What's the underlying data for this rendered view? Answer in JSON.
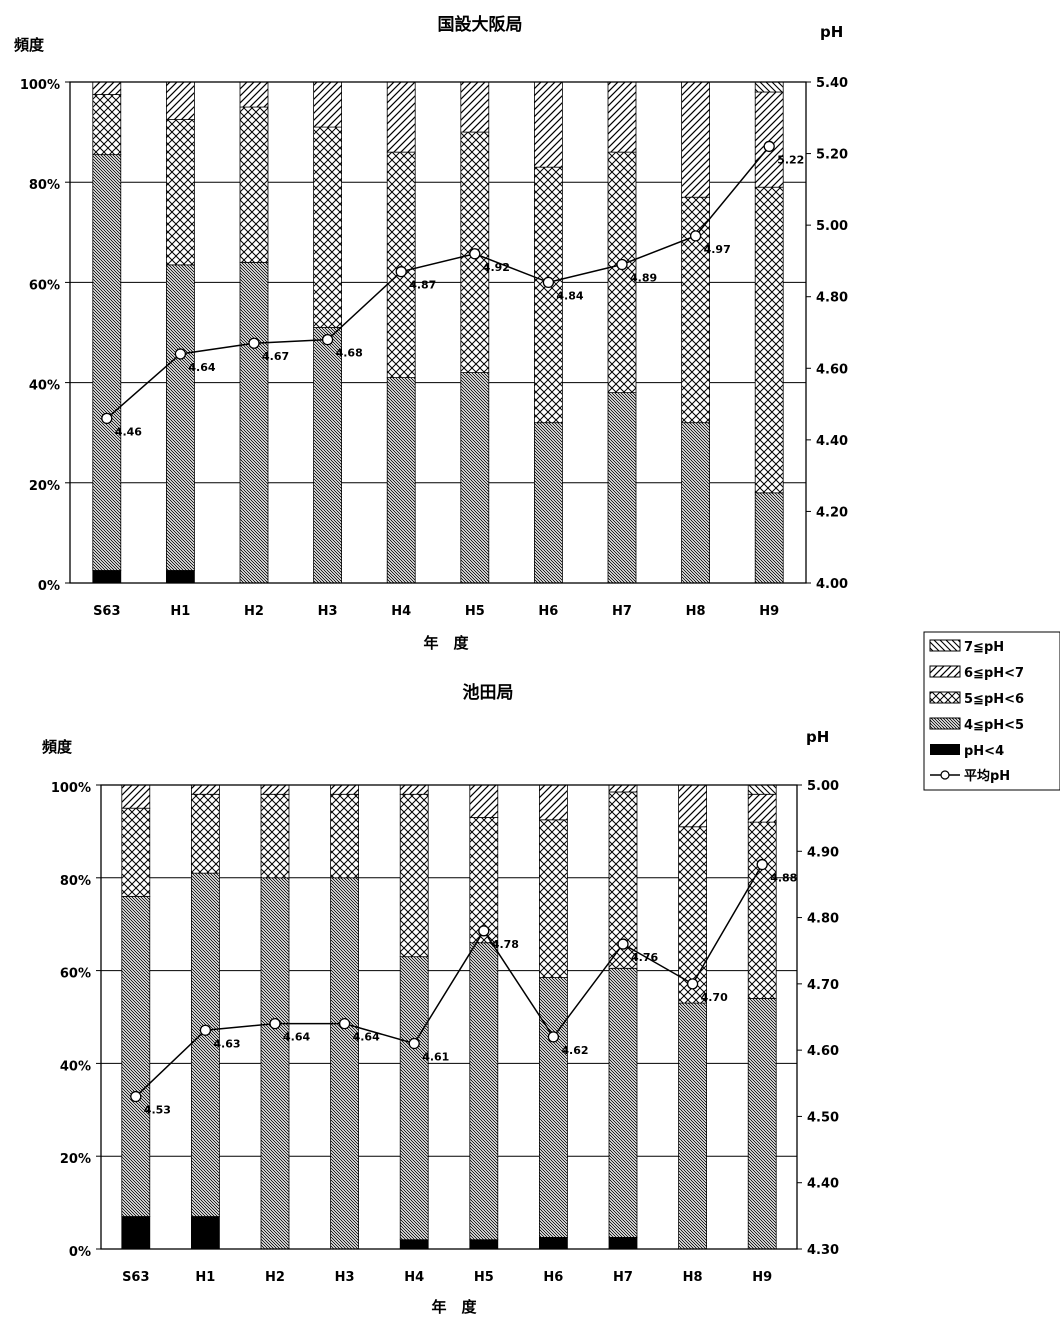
{
  "chart_data": [
    {
      "type": "bar",
      "title": "国設大阪局",
      "ylabel": "頻度",
      "y2label": "pH",
      "xlabel": "年　度",
      "categories": [
        "S63",
        "H1",
        "H2",
        "H3",
        "H4",
        "H5",
        "H6",
        "H7",
        "H8",
        "H9"
      ],
      "ylim": [
        0,
        100
      ],
      "y_ticks": [
        "0%",
        "20%",
        "40%",
        "60%",
        "80%",
        "100%"
      ],
      "y2lim": [
        4.0,
        5.4
      ],
      "y2_ticks": [
        "4.00",
        "4.20",
        "4.40",
        "4.60",
        "4.80",
        "5.00",
        "5.20",
        "5.40"
      ],
      "stacked": true,
      "series": [
        {
          "name": "pH<4",
          "values": [
            2.5,
            2.5,
            0,
            0,
            0,
            0,
            0,
            0,
            0,
            0
          ]
        },
        {
          "name": "4≦pH<5",
          "values": [
            83,
            61,
            64,
            51,
            41,
            42,
            32,
            38,
            32,
            18
          ]
        },
        {
          "name": "5≦pH<6",
          "values": [
            12,
            29,
            31,
            40,
            45,
            48,
            51,
            48,
            45,
            61
          ]
        },
        {
          "name": "6≦pH<7",
          "values": [
            2.5,
            7.5,
            5,
            9,
            14,
            10,
            17,
            14,
            23,
            19
          ]
        },
        {
          "name": "7≦pH",
          "values": [
            0,
            0,
            0,
            0,
            0,
            0,
            0,
            0,
            0,
            2
          ]
        }
      ],
      "line": {
        "name": "平均pH",
        "values": [
          4.46,
          4.64,
          4.67,
          4.68,
          4.87,
          4.92,
          4.84,
          4.89,
          4.97,
          5.22
        ],
        "labels": [
          "4.46",
          "4.64",
          "4.67",
          "4.68",
          "4.87",
          "4.92",
          "4.84",
          "4.89",
          "4.97",
          "5.22"
        ]
      }
    },
    {
      "type": "bar",
      "title": "池田局",
      "ylabel": "頻度",
      "y2label": "pH",
      "xlabel": "年　度",
      "categories": [
        "S63",
        "H1",
        "H2",
        "H3",
        "H4",
        "H5",
        "H6",
        "H7",
        "H8",
        "H9"
      ],
      "ylim": [
        0,
        100
      ],
      "y_ticks": [
        "0%",
        "20%",
        "40%",
        "60%",
        "80%",
        "100%"
      ],
      "y2lim": [
        4.3,
        5.0
      ],
      "y2_ticks": [
        "4.30",
        "4.40",
        "4.50",
        "4.60",
        "4.70",
        "4.80",
        "4.90",
        "5.00"
      ],
      "stacked": true,
      "series": [
        {
          "name": "pH<4",
          "values": [
            7,
            7,
            0,
            0,
            2,
            2,
            2.5,
            2.5,
            0,
            0
          ]
        },
        {
          "name": "4≦pH<5",
          "values": [
            69,
            74,
            80,
            80,
            61,
            64,
            56,
            58,
            53,
            54
          ]
        },
        {
          "name": "5≦pH<6",
          "values": [
            19,
            17,
            18,
            18,
            35,
            27,
            34,
            38,
            38,
            38
          ]
        },
        {
          "name": "6≦pH<7",
          "values": [
            5,
            2,
            2,
            2,
            2,
            7,
            7.5,
            1.5,
            9,
            6
          ]
        },
        {
          "name": "7≦pH",
          "values": [
            0,
            0,
            0,
            0,
            0,
            0,
            0,
            0,
            0,
            2
          ]
        }
      ],
      "line": {
        "name": "平均pH",
        "values": [
          4.53,
          4.63,
          4.64,
          4.64,
          4.61,
          4.78,
          4.62,
          4.76,
          4.7,
          4.88
        ],
        "labels": [
          "4.53",
          "4.63",
          "4.64",
          "4.64",
          "4.61",
          "4.78",
          "4.62",
          "4.76",
          "4.70",
          "4.88"
        ]
      }
    }
  ],
  "legend": {
    "placement": "right",
    "items": [
      "7≦pH",
      "6≦pH<7",
      "5≦pH<6",
      "4≦pH<5",
      "pH<4",
      "平均pH"
    ]
  }
}
